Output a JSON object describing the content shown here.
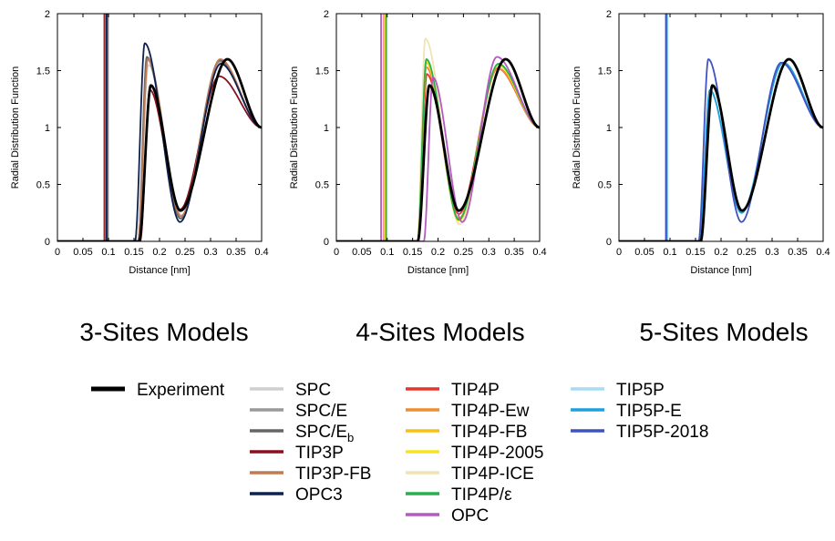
{
  "figure": {
    "group_titles": [
      "3-Sites Models",
      "4-Sites Models",
      "5-Sites Models"
    ],
    "legend_columns": [
      [
        {
          "label": "Experiment",
          "color": "#000000"
        }
      ],
      [
        {
          "label": "SPC",
          "color": "#cfcfcf"
        },
        {
          "label": "SPC/E",
          "color": "#999999"
        },
        {
          "label": "SPC/E",
          "sub": "b",
          "color": "#666666"
        },
        {
          "label": "TIP3P",
          "color": "#8b0f1e"
        },
        {
          "label": "TIP3P-FB",
          "color": "#c07a54"
        },
        {
          "label": "OPC3",
          "color": "#0d2250"
        }
      ],
      [
        {
          "label": "TIP4P",
          "color": "#e8352c"
        },
        {
          "label": "TIP4P-Ew",
          "color": "#f18d2e"
        },
        {
          "label": "TIP4P-FB",
          "color": "#f7c016"
        },
        {
          "label": "TIP4P-2005",
          "color": "#f5e51a"
        },
        {
          "label": "TIP4P-ICE",
          "color": "#f2e3b4"
        },
        {
          "label": "TIP4P/ε",
          "color": "#27b04d"
        },
        {
          "label": "OPC",
          "color": "#b55ac0"
        }
      ],
      [
        {
          "label": "TIP5P",
          "color": "#a8dcf0"
        },
        {
          "label": "TIP5P-E",
          "color": "#1ea0dc"
        },
        {
          "label": "TIP5P-2018",
          "color": "#3f52c2"
        }
      ]
    ]
  },
  "chart_data": [
    {
      "type": "line",
      "title": "",
      "xlabel": "Distance [nm]",
      "ylabel": "Radial Distribution Function",
      "xlim": [
        0,
        0.4
      ],
      "ylim": [
        0,
        2
      ],
      "xticks": [
        "0",
        "0.05",
        "0.1",
        "0.15",
        "0.2",
        "0.25",
        "0.3",
        "0.35",
        "0.4"
      ],
      "yticks": [
        "0",
        "0.5",
        "1",
        "1.5",
        "2"
      ],
      "grid": false,
      "series": [
        {
          "name": "SPC",
          "color": "#cfcfcf",
          "onset": 0.158,
          "p1": [
            0.178,
            1.55
          ],
          "min": [
            0.243,
            0.23
          ],
          "p2": [
            0.319,
            1.57
          ],
          "vline": 0.1
        },
        {
          "name": "SPC/E",
          "color": "#999999",
          "onset": 0.158,
          "p1": [
            0.176,
            1.6
          ],
          "min": [
            0.242,
            0.2
          ],
          "p2": [
            0.318,
            1.58
          ],
          "vline": 0.097
        },
        {
          "name": "SPC/Eb",
          "color": "#666666",
          "onset": 0.158,
          "p1": [
            0.175,
            1.62
          ],
          "min": [
            0.241,
            0.2
          ],
          "p2": [
            0.318,
            1.59
          ],
          "vline": 0.098
        },
        {
          "name": "TIP3P",
          "color": "#8b0f1e",
          "onset": 0.162,
          "p1": [
            0.181,
            1.33
          ],
          "min": [
            0.24,
            0.28
          ],
          "p2": [
            0.317,
            1.45
          ],
          "vline": 0.092
        },
        {
          "name": "TIP3P-FB",
          "color": "#c07a54",
          "onset": 0.158,
          "p1": [
            0.177,
            1.6
          ],
          "min": [
            0.242,
            0.22
          ],
          "p2": [
            0.319,
            1.6
          ],
          "vline": 0.094
        },
        {
          "name": "OPC3",
          "color": "#0d2250",
          "onset": 0.152,
          "p1": [
            0.171,
            1.74
          ],
          "min": [
            0.24,
            0.17
          ],
          "p2": [
            0.32,
            1.56
          ],
          "vline": 0.096
        },
        {
          "name": "Experiment",
          "color": "#000000",
          "onset": 0.16,
          "p1": [
            0.183,
            1.37
          ],
          "min": [
            0.241,
            0.27
          ],
          "p2": [
            0.333,
            1.6
          ],
          "vline": null
        }
      ]
    },
    {
      "type": "line",
      "title": "",
      "xlabel": "Distance [nm]",
      "ylabel": "Radial Distribution Function",
      "xlim": [
        0,
        0.4
      ],
      "ylim": [
        0,
        2
      ],
      "xticks": [
        "0",
        "0.05",
        "0.1",
        "0.15",
        "0.2",
        "0.25",
        "0.3",
        "0.35",
        "0.4"
      ],
      "yticks": [
        "0",
        "0.5",
        "1",
        "1.5",
        "2"
      ],
      "grid": false,
      "series": [
        {
          "name": "TIP4P-ICE",
          "color": "#f2e3b4",
          "onset": 0.159,
          "p1": [
            0.175,
            1.78
          ],
          "min": [
            0.242,
            0.15
          ],
          "p2": [
            0.318,
            1.53
          ],
          "vline": 0.097
        },
        {
          "name": "TIP4P",
          "color": "#e8352c",
          "onset": 0.161,
          "p1": [
            0.178,
            1.47
          ],
          "min": [
            0.241,
            0.24
          ],
          "p2": [
            0.317,
            1.52
          ],
          "vline": 0.094
        },
        {
          "name": "TIP4P-Ew",
          "color": "#f18d2e",
          "onset": 0.16,
          "p1": [
            0.177,
            1.53
          ],
          "min": [
            0.241,
            0.2
          ],
          "p2": [
            0.318,
            1.52
          ],
          "vline": 0.095
        },
        {
          "name": "TIP4P-FB",
          "color": "#f7c016",
          "onset": 0.16,
          "p1": [
            0.177,
            1.57
          ],
          "min": [
            0.241,
            0.19
          ],
          "p2": [
            0.318,
            1.55
          ],
          "vline": 0.095
        },
        {
          "name": "TIP4P-2005",
          "color": "#f5e51a",
          "onset": 0.16,
          "p1": [
            0.177,
            1.58
          ],
          "min": [
            0.241,
            0.18
          ],
          "p2": [
            0.318,
            1.55
          ],
          "vline": 0.096
        },
        {
          "name": "TIP4P/ε",
          "color": "#27b04d",
          "onset": 0.16,
          "p1": [
            0.177,
            1.6
          ],
          "min": [
            0.241,
            0.19
          ],
          "p2": [
            0.319,
            1.56
          ],
          "vline": 0.098
        },
        {
          "name": "OPC",
          "color": "#b55ac0",
          "onset": 0.172,
          "p1": [
            0.19,
            1.44
          ],
          "min": [
            0.248,
            0.17
          ],
          "p2": [
            0.316,
            1.62
          ],
          "vline": 0.088
        },
        {
          "name": "Experiment",
          "color": "#000000",
          "onset": 0.16,
          "p1": [
            0.183,
            1.37
          ],
          "min": [
            0.241,
            0.27
          ],
          "p2": [
            0.333,
            1.6
          ],
          "vline": null
        }
      ]
    },
    {
      "type": "line",
      "title": "",
      "xlabel": "Distance [nm]",
      "ylabel": "Radial Distribution Function",
      "xlim": [
        0,
        0.4
      ],
      "ylim": [
        0,
        2
      ],
      "xticks": [
        "0",
        "0.05",
        "0.1",
        "0.15",
        "0.2",
        "0.25",
        "0.3",
        "0.35",
        "0.4"
      ],
      "yticks": [
        "0",
        "0.5",
        "1",
        "1.5",
        "2"
      ],
      "grid": false,
      "series": [
        {
          "name": "TIP5P",
          "color": "#a8dcf0",
          "onset": 0.158,
          "p1": [
            0.178,
            1.32
          ],
          "min": [
            0.24,
            0.25
          ],
          "p2": [
            0.322,
            1.57
          ],
          "vline": 0.093
        },
        {
          "name": "TIP5P-E",
          "color": "#1ea0dc",
          "onset": 0.158,
          "p1": [
            0.178,
            1.33
          ],
          "min": [
            0.24,
            0.25
          ],
          "p2": [
            0.322,
            1.57
          ],
          "vline": 0.094
        },
        {
          "name": "TIP5P-2018",
          "color": "#3f52c2",
          "onset": 0.156,
          "p1": [
            0.175,
            1.6
          ],
          "min": [
            0.24,
            0.17
          ],
          "p2": [
            0.318,
            1.57
          ],
          "vline": 0.092
        },
        {
          "name": "Experiment",
          "color": "#000000",
          "onset": 0.16,
          "p1": [
            0.183,
            1.37
          ],
          "min": [
            0.241,
            0.27
          ],
          "p2": [
            0.333,
            1.6
          ],
          "vline": null
        }
      ]
    }
  ]
}
